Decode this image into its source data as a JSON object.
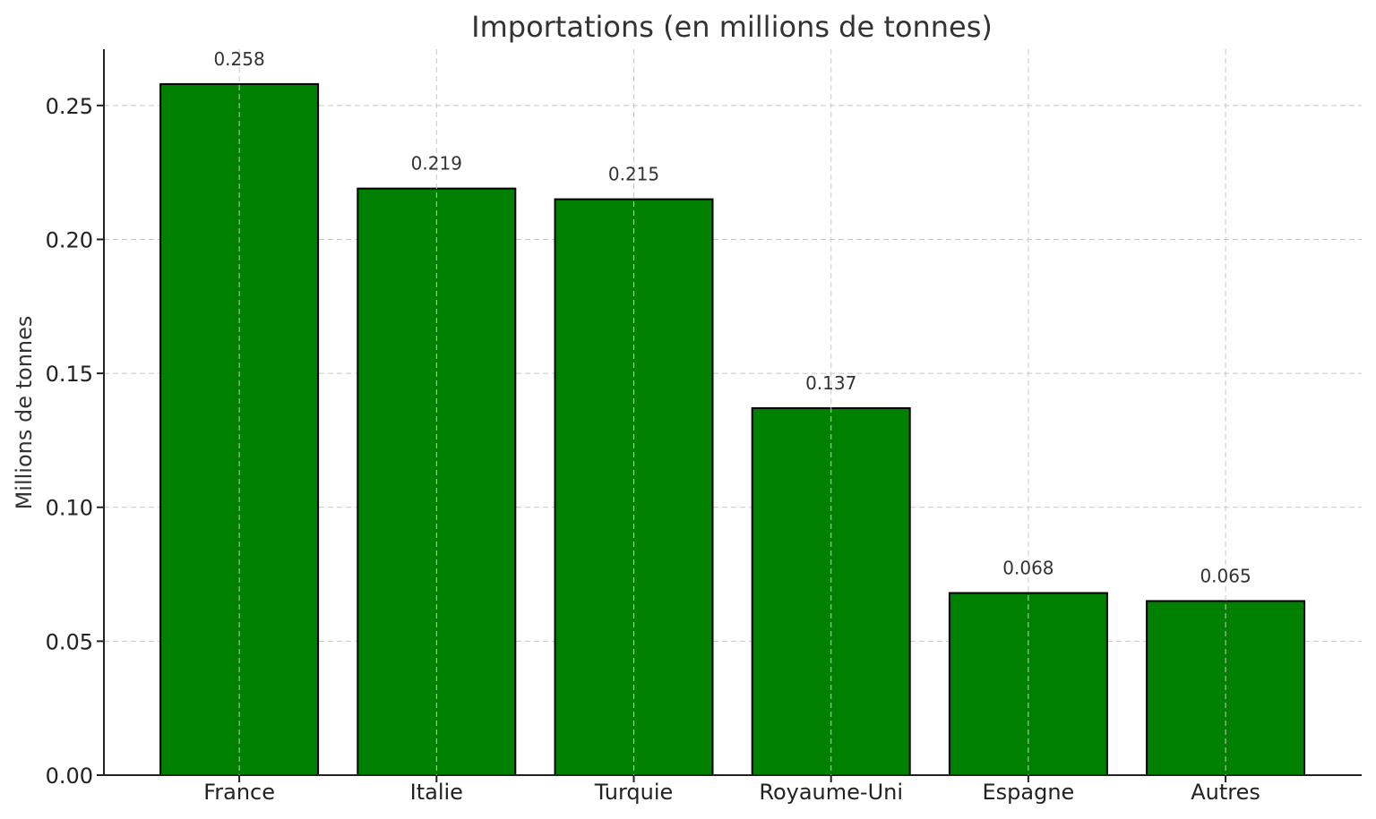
{
  "chart_data": {
    "type": "bar",
    "title": "Importations (en millions de tonnes)",
    "xlabel": "",
    "ylabel": "Millions de tonnes",
    "categories": [
      "France",
      "Italie",
      "Turquie",
      "Royaume-Uni",
      "Espagne",
      "Autres"
    ],
    "values": [
      0.258,
      0.219,
      0.215,
      0.137,
      0.068,
      0.065
    ],
    "value_labels": [
      "0.258",
      "0.219",
      "0.215",
      "0.137",
      "0.068",
      "0.065"
    ],
    "ylim": [
      0,
      0.271
    ],
    "yticks": [
      0.0,
      0.05,
      0.1,
      0.15,
      0.2,
      0.25
    ],
    "ytick_labels": [
      "0.00",
      "0.05",
      "0.10",
      "0.15",
      "0.20",
      "0.25"
    ],
    "grid": true,
    "bar_color": "#008000",
    "bar_edge_color": "#000000"
  }
}
